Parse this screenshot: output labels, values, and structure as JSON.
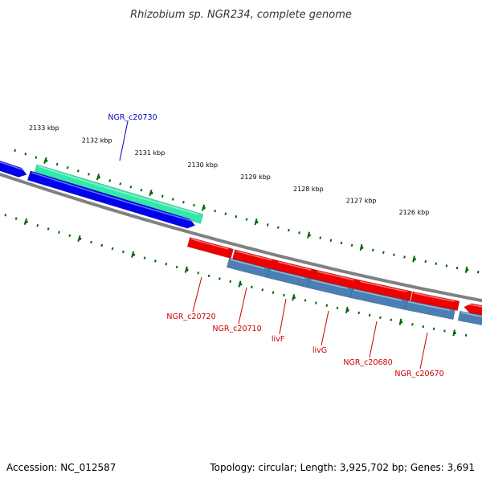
{
  "title": "Rhizobium sp. NGR234, complete genome",
  "footer": {
    "accession": "Accession: NC_012587",
    "summary": "Topology: circular; Length: 3,925,702 bp; Genes: 3,691"
  },
  "colors": {
    "forward_cds": "#0000ee",
    "forward_rna": "#33e8a8",
    "reverse_cds": "#ee0000",
    "reverse_gene": "#4a7fb5",
    "backbone": "#808080",
    "tick": "#006600",
    "label_forward": "#0000cc",
    "label_reverse": "#cc0000"
  },
  "ticks": {
    "labels": [
      "2133 kbp",
      "2132 kbp",
      "2131 kbp",
      "2130 kbp",
      "2129 kbp",
      "2128 kbp",
      "2127 kbp",
      "2126 kbp"
    ]
  },
  "genes": {
    "forward": [
      "NGR_c20730"
    ],
    "reverse": [
      "NGR_c20720",
      "NGR_c20710",
      "livF",
      "livG",
      "NGR_c20680",
      "NGR_c20670"
    ]
  }
}
